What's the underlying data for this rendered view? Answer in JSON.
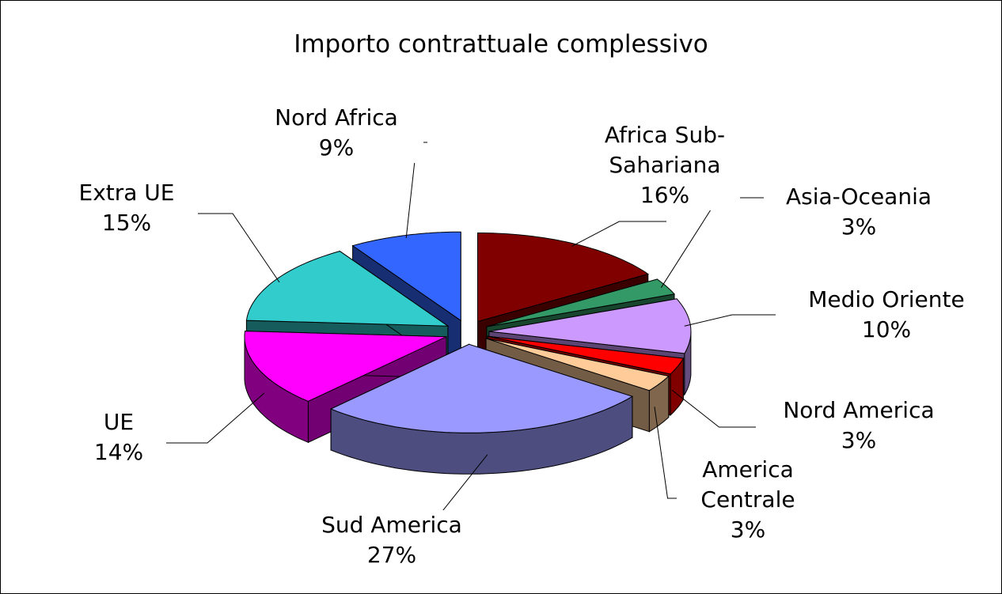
{
  "chart_data": {
    "type": "pie3d",
    "title": "Importo contrattuale complessivo",
    "categories": [
      "Africa Sub-Sahariana",
      "Asia-Oceania",
      "Medio Oriente",
      "Nord America",
      "America Centrale",
      "Sud America",
      "UE",
      "Extra UE",
      "Nord Africa"
    ],
    "values": [
      16,
      3,
      10,
      3,
      3,
      27,
      14,
      15,
      9
    ],
    "value_labels": [
      "16%",
      "3%",
      "10%",
      "3%",
      "3%",
      "27%",
      "14%",
      "15%",
      "9%"
    ],
    "colors": [
      "#800000",
      "#339966",
      "#CC99FF",
      "#FF0000",
      "#FFCC99",
      "#9999FF",
      "#FF00FF",
      "#33CCCC",
      "#3366FF"
    ]
  }
}
